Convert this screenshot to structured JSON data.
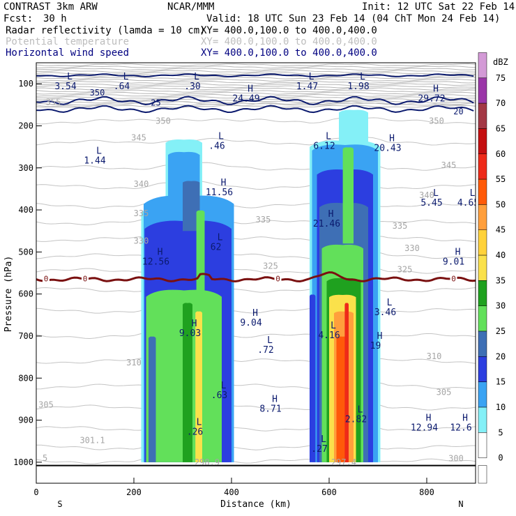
{
  "header": {
    "model": "CONTRAST  3km ARW",
    "org": "NCAR/MMM",
    "init": "Init: 12 UTC Sat 22 Feb 14",
    "fcst_label": "Fcst:",
    "fcst_value": "30 h",
    "valid": "Valid: 18 UTC Sun 23 Feb 14 (04 ChT Mon 24 Feb 14)",
    "fields": [
      {
        "name": "Radar reflectivity (lamda = 10 cm)",
        "xy": "XY= 400.0,100.0 to 400.0,400.0",
        "color": "#000000"
      },
      {
        "name": "Potential temperature",
        "xy": "XY= 400.0,100.0 to 400.0,400.0",
        "color": "#bdbdbd"
      },
      {
        "name": "Horizontal wind speed",
        "xy": "XY= 400.0,100.0 to 400.0,400.0",
        "color": "#000080"
      }
    ]
  },
  "chart_data": {
    "type": "heatmap",
    "title": "",
    "xlabel": "Distance (km)",
    "ylabel": "Pressure (hPa)",
    "xlim": [
      0,
      900
    ],
    "ylim": [
      1050,
      50
    ],
    "x_ticks": [
      0,
      200,
      400,
      600,
      800
    ],
    "y_ticks": [
      100,
      200,
      300,
      400,
      500,
      600,
      700,
      800,
      900,
      1000
    ],
    "x_end_labels": {
      "left": "S",
      "right": "N"
    },
    "colorbar": {
      "label": "dBZ",
      "levels": [
        {
          "value": 75,
          "color": "#d39ad6"
        },
        {
          "value": 70,
          "color": "#9b36a8"
        },
        {
          "value": 65,
          "color": "#a33845"
        },
        {
          "value": 60,
          "color": "#c40f10"
        },
        {
          "value": 55,
          "color": "#ee2a19"
        },
        {
          "value": 50,
          "color": "#ff5a09"
        },
        {
          "value": 45,
          "color": "#ff9f3c"
        },
        {
          "value": 40,
          "color": "#ffd23a"
        },
        {
          "value": 35,
          "color": "#fae14b"
        },
        {
          "value": 30,
          "color": "#1fa11f"
        },
        {
          "value": 25,
          "color": "#62e05a"
        },
        {
          "value": 20,
          "color": "#3e6fb5"
        },
        {
          "value": 15,
          "color": "#2c3ee0"
        },
        {
          "value": 10,
          "color": "#3aa3f3"
        },
        {
          "value": 5,
          "color": "#84f0f7"
        },
        {
          "value": 0,
          "color": "#ffffff"
        }
      ]
    },
    "reflectivity_cells": [
      {
        "x0": 215,
        "x1": 405,
        "p_top": 230,
        "p_bot": 1000
      },
      {
        "x0": 555,
        "x1": 705,
        "p_top": 160,
        "p_bot": 1000
      }
    ],
    "freezing_level": {
      "label": "0",
      "p": 565,
      "color": "#7a1010"
    },
    "ground_line_p": 1008,
    "theta_labels": [
      {
        "text": "355",
        "x": 35,
        "p": 150
      },
      {
        "text": "350",
        "x": 260,
        "p": 195
      },
      {
        "text": "350",
        "x": 820,
        "p": 195
      },
      {
        "text": "345",
        "x": 210,
        "p": 235
      },
      {
        "text": "345",
        "x": 845,
        "p": 300
      },
      {
        "text": "340",
        "x": 215,
        "p": 345
      },
      {
        "text": "340",
        "x": 800,
        "p": 372
      },
      {
        "text": "335",
        "x": 215,
        "p": 415
      },
      {
        "text": "335",
        "x": 465,
        "p": 430
      },
      {
        "text": "335",
        "x": 745,
        "p": 445
      },
      {
        "text": "330",
        "x": 215,
        "p": 480
      },
      {
        "text": "330",
        "x": 770,
        "p": 498
      },
      {
        "text": "325",
        "x": 480,
        "p": 540
      },
      {
        "text": "325",
        "x": 755,
        "p": 548
      },
      {
        "text": "310",
        "x": 200,
        "p": 770
      },
      {
        "text": "310",
        "x": 815,
        "p": 755
      },
      {
        "text": "305",
        "x": 20,
        "p": 870
      },
      {
        "text": "305",
        "x": 835,
        "p": 840
      },
      {
        "text": "301.1",
        "x": 115,
        "p": 955
      },
      {
        "text": "298.9",
        "x": 350,
        "p": 1007
      },
      {
        "text": "297.4",
        "x": 630,
        "p": 1007
      },
      {
        "text": "300",
        "x": 860,
        "p": 998
      },
      {
        "text": "5",
        "x": 18,
        "p": 997
      }
    ],
    "wind_labels": [
      {
        "text": "350",
        "x": 125,
        "p": 128
      },
      {
        "text": "25",
        "x": 245,
        "p": 152
      },
      {
        "text": "20",
        "x": 865,
        "p": 173
      }
    ],
    "extrema": [
      {
        "type": "L",
        "value": "3.54",
        "x": 60,
        "p": 113
      },
      {
        "type": "L",
        "value": ".64",
        "x": 175,
        "p": 113
      },
      {
        "type": "L",
        "value": ".30",
        "x": 320,
        "p": 113
      },
      {
        "type": "L",
        "value": "1.47",
        "x": 555,
        "p": 113
      },
      {
        "type": "L",
        "value": "1.98",
        "x": 660,
        "p": 113
      },
      {
        "type": "H",
        "value": "24.49",
        "x": 430,
        "p": 142
      },
      {
        "type": "H",
        "value": "29.72",
        "x": 810,
        "p": 142
      },
      {
        "type": "L",
        "value": ".46",
        "x": 370,
        "p": 255
      },
      {
        "type": "L",
        "value": "6.12",
        "x": 590,
        "p": 255
      },
      {
        "type": "H",
        "value": "20.43",
        "x": 720,
        "p": 260
      },
      {
        "type": "L",
        "value": "1.44",
        "x": 120,
        "p": 290
      },
      {
        "type": "H",
        "value": "11.56",
        "x": 375,
        "p": 365
      },
      {
        "type": "L",
        "value": "5.45",
        "x": 810,
        "p": 390
      },
      {
        "type": "L",
        "value": "4.65",
        "x": 885,
        "p": 390
      },
      {
        "type": "H",
        "value": "21.46",
        "x": 595,
        "p": 440
      },
      {
        "type": "L",
        "value": "62",
        "x": 368,
        "p": 495
      },
      {
        "type": "H",
        "value": "12.56",
        "x": 245,
        "p": 530
      },
      {
        "type": "H",
        "value": "9.01",
        "x": 855,
        "p": 530
      },
      {
        "type": "H",
        "value": "9.04",
        "x": 440,
        "p": 675
      },
      {
        "type": "L",
        "value": "3.46",
        "x": 715,
        "p": 650
      },
      {
        "type": "H",
        "value": "9.03",
        "x": 315,
        "p": 700
      },
      {
        "type": "L",
        "value": "4.16",
        "x": 600,
        "p": 705
      },
      {
        "type": "H",
        "value": "19",
        "x": 695,
        "p": 730
      },
      {
        "type": "L",
        "value": ".72",
        "x": 470,
        "p": 740
      },
      {
        "type": "L",
        "value": ".63",
        "x": 375,
        "p": 848
      },
      {
        "type": "H",
        "value": "8.71",
        "x": 480,
        "p": 880
      },
      {
        "type": "L",
        "value": "2.82",
        "x": 655,
        "p": 905
      },
      {
        "type": "H",
        "value": "12.94",
        "x": 795,
        "p": 925
      },
      {
        "type": "H",
        "value": "12.6",
        "x": 870,
        "p": 925
      },
      {
        "type": "L",
        "value": ".26",
        "x": 325,
        "p": 935
      },
      {
        "type": "L",
        "value": ".27",
        "x": 580,
        "p": 975
      }
    ]
  }
}
